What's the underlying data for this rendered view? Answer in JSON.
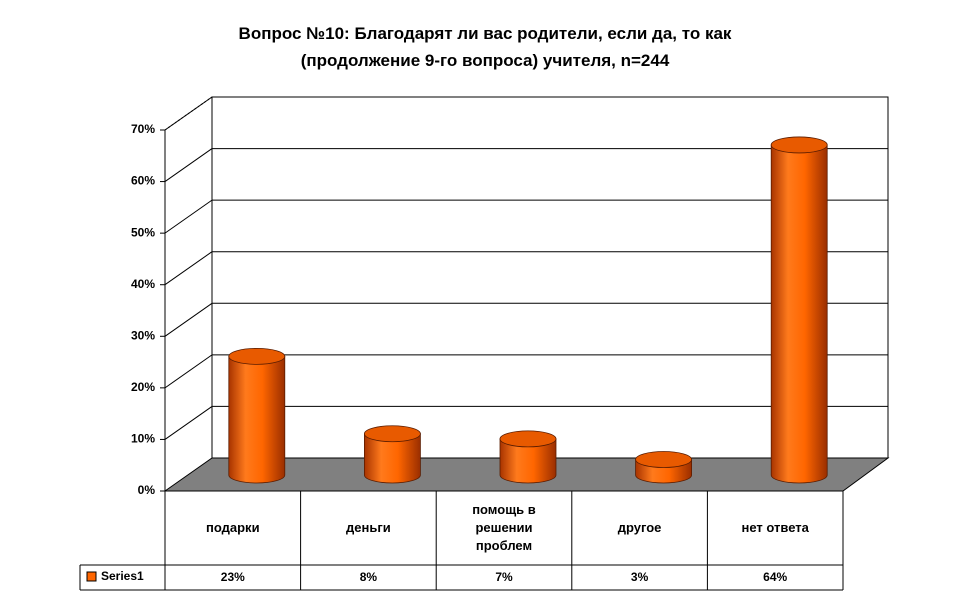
{
  "chart_data": {
    "type": "bar3d",
    "title": "Вопрос №10: Благодарят ли вас родители, если да, то как (продолжение 9-го вопроса) учителя, n=244",
    "categories": [
      "подарки",
      "деньги",
      "помощь в решении проблем",
      "другое",
      "нет ответа"
    ],
    "series": [
      {
        "name": "Series1",
        "color": "#ff6600",
        "values": [
          23,
          8,
          7,
          3,
          64
        ],
        "value_labels": [
          "23%",
          "8%",
          "7%",
          "3%",
          "64%"
        ]
      }
    ],
    "ylim": [
      0,
      70
    ],
    "yticks": [
      {
        "value": 0,
        "label": "0%"
      },
      {
        "value": 10,
        "label": "10%"
      },
      {
        "value": 20,
        "label": "20%"
      },
      {
        "value": 30,
        "label": "30%"
      },
      {
        "value": 40,
        "label": "40%"
      },
      {
        "value": 50,
        "label": "50%"
      },
      {
        "value": 60,
        "label": "60%"
      },
      {
        "value": 70,
        "label": "70%"
      }
    ],
    "grid": true
  }
}
